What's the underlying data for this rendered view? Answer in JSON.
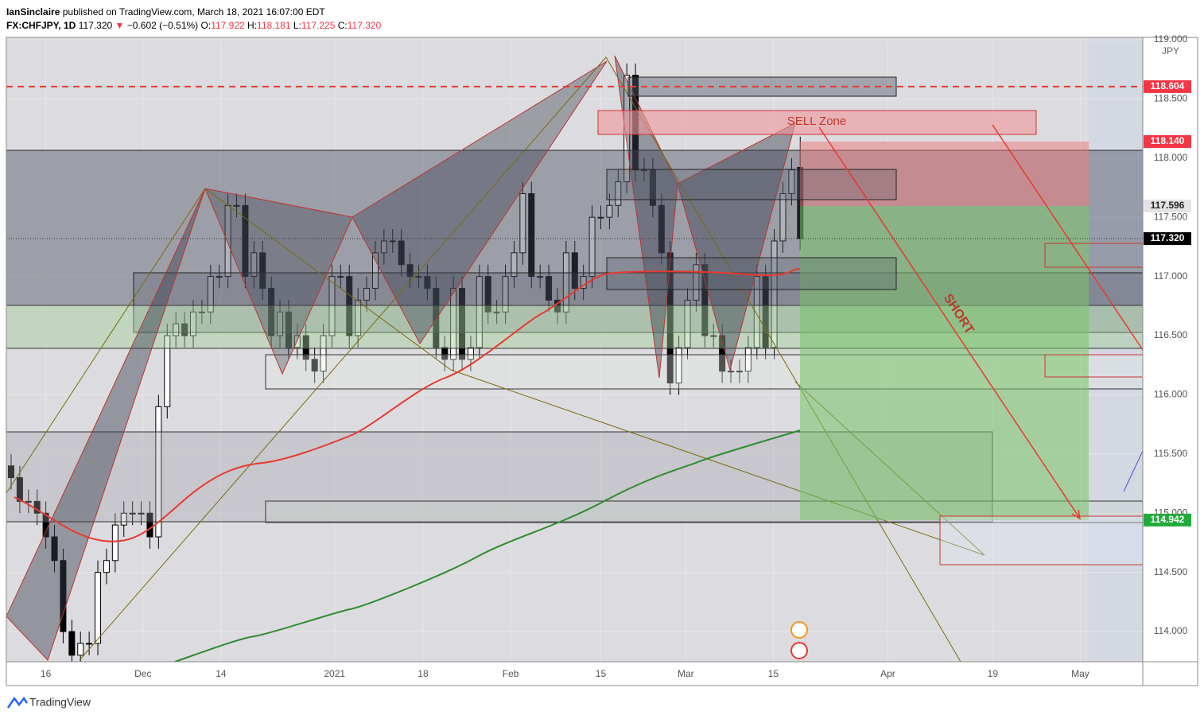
{
  "header": {
    "author": "IanSinclaire",
    "published": "published on TradingView.com, March 18, 2021 16:07:00 EDT",
    "symbol": "FX:CHFJPY, 1D",
    "last": "117.320",
    "arrow": "▼",
    "change": "−0.602 (−0.51%)",
    "o_label": "O:",
    "o": "117.922",
    "h_label": "H:",
    "h": "118.181",
    "l_label": "L:",
    "l": "117.225",
    "c_label": "C:",
    "c": "117.320"
  },
  "footer": {
    "brand": "TradingView"
  },
  "chart_data": {
    "type": "candlestick",
    "currency": "JPY",
    "annotations": {
      "sell_zone": "SELL Zone",
      "short": "SHORT"
    },
    "up_color": "#ffffff",
    "down_color": "#000000",
    "xlim": [
      -0.55,
      130.5
    ],
    "xticks": [
      {
        "value": 4,
        "label": "16"
      },
      {
        "value": 15.2,
        "label": "Dec"
      },
      {
        "value": 24.2,
        "label": "14"
      },
      {
        "value": 37.3,
        "label": "2021"
      },
      {
        "value": 47.5,
        "label": "18"
      },
      {
        "value": 57.6,
        "label": "Feb"
      },
      {
        "value": 68,
        "label": "15"
      },
      {
        "value": 77.8,
        "label": "Mar"
      },
      {
        "value": 87.9,
        "label": "15"
      },
      {
        "value": 101.1,
        "label": "Apr"
      },
      {
        "value": 113.2,
        "label": "19"
      },
      {
        "value": 123.3,
        "label": "May"
      }
    ],
    "ylim": [
      113.745,
      119.02
    ],
    "yticks": [
      {
        "value": 114,
        "label": "114.000"
      },
      {
        "value": 114.5,
        "label": "114.500"
      },
      {
        "value": 115,
        "label": "115.000"
      },
      {
        "value": 115.5,
        "label": "115.500"
      },
      {
        "value": 116,
        "label": "116.000"
      },
      {
        "value": 116.5,
        "label": "116.500"
      },
      {
        "value": 117,
        "label": "117.000"
      },
      {
        "value": 117.5,
        "label": "117.500"
      },
      {
        "value": 118,
        "label": "118.000"
      },
      {
        "value": 118.5,
        "label": "118.500"
      },
      {
        "value": 119,
        "label": "119.000"
      }
    ],
    "price_markers": [
      {
        "value": 118.604,
        "label": "118.604",
        "color": "#f23645",
        "line": "dashed"
      },
      {
        "value": 118.14,
        "label": "118.140",
        "color": "#f23645"
      },
      {
        "value": 117.596,
        "label": "117.596",
        "color": "#e3e3e3"
      },
      {
        "value": 117.32,
        "label": "117.320",
        "color": "#000000",
        "line": "dotted"
      },
      {
        "value": 114.942,
        "label": "114.942",
        "color": "#22ab3a"
      }
    ],
    "open": [
      115.4,
      115.3,
      115.1,
      115.1,
      115.0,
      114.8,
      114.6,
      114.0,
      113.8,
      113.9,
      113.9,
      114.5,
      114.6,
      114.9,
      115.0,
      115.0,
      115.0,
      114.8,
      115.9,
      116.5,
      116.6,
      116.5,
      116.7,
      116.7,
      117.0,
      117.0,
      117.6,
      117.6,
      117.0,
      117.2,
      116.9,
      116.5,
      116.7,
      116.4,
      116.5,
      116.3,
      116.2,
      116.5,
      117.0,
      117.0,
      116.5,
      116.8,
      116.9,
      117.2,
      117.3,
      117.3,
      117.1,
      117.0,
      117.0,
      116.9,
      116.4,
      116.3,
      116.9,
      116.3,
      116.4,
      117.0,
      116.7,
      116.7,
      117.0,
      117.2,
      117.7,
      117.0,
      117.0,
      116.8,
      116.7,
      117.2,
      116.9,
      117.0,
      117.5,
      117.5,
      117.6,
      117.8,
      118.7,
      117.9,
      117.9,
      117.6,
      117.2,
      116.1,
      116.4,
      116.8,
      117.1,
      116.5,
      116.5,
      116.2,
      116.2,
      116.2,
      116.4,
      117.0,
      116.4,
      117.3,
      117.7,
      117.922
    ],
    "high": [
      115.5,
      115.4,
      115.2,
      115.2,
      115.1,
      114.9,
      114.7,
      114.1,
      114.0,
      114.0,
      114.6,
      114.7,
      115.0,
      115.1,
      115.1,
      115.1,
      115.1,
      116.0,
      116.6,
      116.7,
      116.7,
      116.8,
      116.8,
      117.1,
      117.1,
      117.7,
      117.7,
      117.7,
      117.3,
      117.3,
      117.0,
      116.8,
      116.8,
      116.6,
      116.6,
      116.4,
      116.6,
      117.1,
      117.1,
      117.1,
      116.9,
      117.0,
      117.3,
      117.4,
      117.4,
      117.4,
      117.2,
      117.1,
      117.1,
      117.0,
      116.5,
      117.0,
      117.0,
      116.5,
      117.1,
      117.1,
      116.8,
      117.1,
      117.3,
      117.8,
      117.8,
      117.1,
      117.1,
      116.9,
      117.3,
      117.3,
      117.1,
      117.6,
      117.6,
      117.7,
      117.9,
      118.8,
      118.8,
      118.0,
      118.0,
      117.7,
      117.3,
      116.5,
      116.9,
      117.2,
      117.2,
      116.6,
      116.6,
      116.3,
      116.3,
      116.5,
      117.1,
      117.1,
      117.4,
      117.8,
      118.0,
      118.181
    ],
    "low": [
      115.2,
      115.0,
      115.0,
      114.9,
      114.7,
      114.5,
      113.9,
      113.7,
      113.7,
      113.8,
      113.8,
      114.4,
      114.5,
      114.8,
      114.9,
      114.9,
      114.7,
      114.7,
      115.8,
      116.4,
      116.4,
      116.4,
      116.6,
      116.6,
      116.9,
      116.9,
      117.5,
      116.9,
      116.9,
      116.8,
      116.4,
      116.4,
      116.3,
      116.3,
      116.2,
      116.1,
      116.1,
      116.4,
      116.9,
      116.4,
      116.4,
      116.7,
      116.8,
      117.1,
      117.2,
      117.0,
      116.9,
      116.9,
      116.8,
      116.3,
      116.2,
      116.2,
      116.2,
      116.2,
      116.3,
      116.6,
      116.6,
      116.6,
      116.9,
      117.1,
      116.9,
      116.9,
      116.7,
      116.6,
      116.6,
      116.8,
      116.8,
      116.9,
      117.4,
      117.4,
      117.5,
      117.7,
      117.8,
      117.8,
      117.5,
      117.1,
      116.0,
      116.0,
      116.3,
      116.7,
      116.4,
      116.4,
      116.1,
      116.1,
      116.1,
      116.1,
      116.3,
      116.3,
      116.3,
      117.2,
      117.6,
      117.225
    ],
    "close": [
      115.3,
      115.1,
      115.1,
      115.0,
      114.8,
      114.6,
      114.0,
      113.8,
      113.9,
      113.9,
      114.5,
      114.6,
      114.9,
      115.0,
      115.0,
      115.0,
      114.8,
      115.9,
      116.5,
      116.6,
      116.5,
      116.7,
      116.7,
      117.0,
      117.0,
      117.6,
      117.6,
      117.0,
      117.2,
      116.9,
      116.5,
      116.7,
      116.4,
      116.5,
      116.3,
      116.2,
      116.5,
      117.0,
      117.0,
      116.5,
      116.8,
      116.9,
      117.2,
      117.3,
      117.3,
      117.1,
      117.0,
      117.0,
      116.9,
      116.4,
      116.3,
      116.9,
      116.3,
      116.4,
      117.0,
      116.7,
      116.7,
      117.0,
      117.2,
      117.7,
      117.0,
      117.0,
      116.8,
      116.7,
      117.2,
      116.9,
      117.0,
      117.5,
      117.5,
      117.6,
      117.8,
      118.7,
      117.9,
      117.9,
      117.6,
      117.2,
      116.1,
      116.4,
      116.8,
      117.1,
      116.5,
      116.5,
      116.2,
      116.2,
      116.2,
      116.4,
      117.0,
      116.4,
      117.3,
      117.7,
      117.9,
      117.32
    ]
  }
}
